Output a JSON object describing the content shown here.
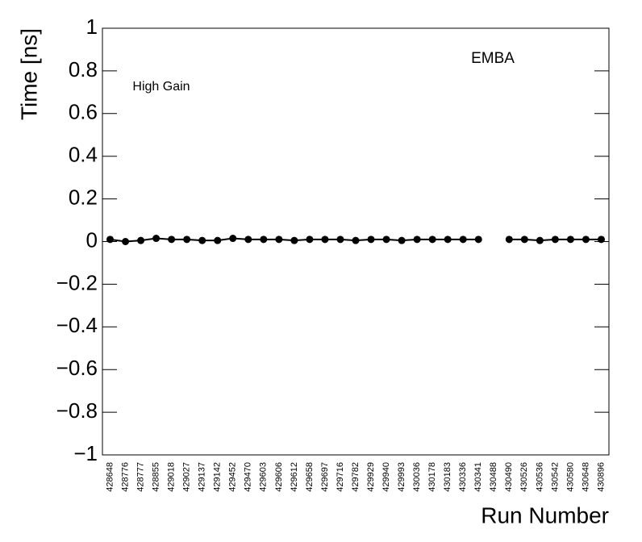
{
  "chart_data": {
    "type": "line",
    "ylabel": "Time [ns]",
    "xlabel": "Run Number",
    "annotations": [
      "EMBA",
      "High Gain"
    ],
    "categories": [
      "428648",
      "428776",
      "428777",
      "428855",
      "429018",
      "429027",
      "429137",
      "429142",
      "429452",
      "429470",
      "429603",
      "429606",
      "429612",
      "429658",
      "429697",
      "429716",
      "429782",
      "429929",
      "429940",
      "429993",
      "430036",
      "430178",
      "430183",
      "430336",
      "430341",
      "430488",
      "430490",
      "430526",
      "430536",
      "430542",
      "430580",
      "430648",
      "430896"
    ],
    "values": [
      0.01,
      0.0,
      0.005,
      0.015,
      0.01,
      0.01,
      0.005,
      0.005,
      0.015,
      0.01,
      0.01,
      0.01,
      0.005,
      0.01,
      0.01,
      0.01,
      0.005,
      0.01,
      0.01,
      0.005,
      0.01,
      0.01,
      0.01,
      0.01,
      0.01,
      null,
      0.01,
      0.01,
      0.005,
      0.01,
      0.01,
      0.01,
      0.01
    ],
    "color": "#000000",
    "ylim": [
      -1,
      1
    ],
    "yticks": [
      {
        "value": -1,
        "label": "−1"
      },
      {
        "value": -0.8,
        "label": "−0.8"
      },
      {
        "value": -0.6,
        "label": "−0.6"
      },
      {
        "value": -0.4,
        "label": "−0.4"
      },
      {
        "value": -0.2,
        "label": "−0.2"
      },
      0,
      0.2,
      0.4,
      0.6,
      0.8,
      1
    ]
  }
}
